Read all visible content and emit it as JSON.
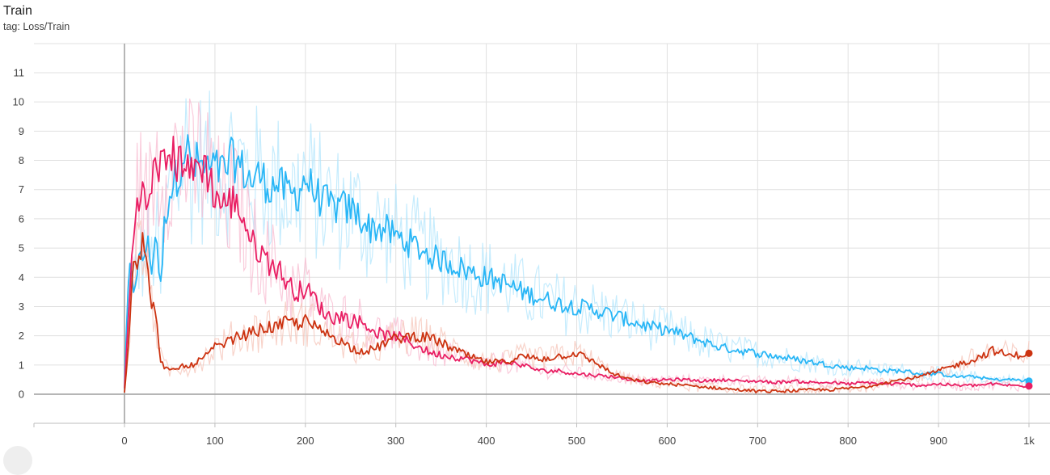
{
  "header": {
    "title": "Train",
    "subtitle": "tag: Loss/Train"
  },
  "chart_data": {
    "type": "line",
    "title": "Train",
    "subtitle": "tag: Loss/Train",
    "xlabel": "",
    "ylabel": "",
    "xlim": [
      -100,
      1015
    ],
    "ylim": [
      -1,
      12
    ],
    "x_ticks": [
      "0",
      "100",
      "200",
      "300",
      "400",
      "500",
      "600",
      "700",
      "800",
      "900",
      "1k"
    ],
    "y_ticks": [
      "0",
      "1",
      "2",
      "3",
      "4",
      "5",
      "6",
      "7",
      "8",
      "9",
      "10",
      "11"
    ],
    "grid": true,
    "legend": "none",
    "smoothing": "light raw trace behind smoothed trace",
    "series": [
      {
        "color": "#29b6f6",
        "raw_color": "#b3e5fc",
        "x": [
          0,
          5,
          10,
          15,
          20,
          25,
          30,
          35,
          40,
          45,
          50,
          55,
          60,
          65,
          70,
          75,
          80,
          90,
          100,
          110,
          120,
          130,
          140,
          150,
          160,
          170,
          180,
          190,
          200,
          210,
          220,
          230,
          240,
          250,
          260,
          270,
          280,
          290,
          300,
          320,
          340,
          360,
          380,
          400,
          420,
          440,
          460,
          480,
          500,
          520,
          540,
          560,
          580,
          600,
          620,
          640,
          660,
          680,
          700,
          720,
          740,
          760,
          780,
          800,
          820,
          840,
          860,
          880,
          900,
          920,
          940,
          960,
          980,
          1000
        ],
        "y": [
          0.2,
          4.3,
          3.6,
          4.5,
          4.6,
          5.2,
          4.4,
          5.6,
          3.6,
          6.2,
          6.9,
          7.3,
          7.6,
          8.4,
          8.3,
          7.6,
          7.9,
          7.7,
          7.7,
          7.6,
          8.1,
          7.7,
          7.3,
          7.5,
          7.1,
          7.2,
          6.9,
          6.8,
          7.4,
          6.9,
          6.6,
          6.4,
          6.4,
          6.3,
          6.1,
          5.7,
          5.7,
          5.6,
          5.4,
          5.1,
          4.7,
          4.5,
          4.2,
          4.0,
          3.8,
          3.5,
          3.3,
          3.1,
          3.0,
          2.9,
          2.7,
          2.5,
          2.3,
          2.2,
          2.0,
          1.8,
          1.6,
          1.5,
          1.4,
          1.3,
          1.2,
          1.1,
          1.0,
          0.9,
          0.9,
          0.8,
          0.8,
          0.7,
          0.7,
          0.6,
          0.6,
          0.5,
          0.5,
          0.45
        ]
      },
      {
        "color": "#e91e63",
        "raw_color": "#f8bbd0",
        "x": [
          0,
          5,
          10,
          15,
          20,
          25,
          30,
          35,
          40,
          45,
          50,
          55,
          60,
          65,
          70,
          75,
          80,
          90,
          100,
          110,
          120,
          130,
          140,
          150,
          160,
          170,
          180,
          190,
          200,
          210,
          220,
          230,
          240,
          250,
          260,
          270,
          280,
          290,
          300,
          320,
          340,
          360,
          380,
          400,
          420,
          440,
          460,
          480,
          500,
          520,
          540,
          560,
          580,
          600,
          620,
          640,
          660,
          680,
          700,
          720,
          740,
          760,
          780,
          800,
          820,
          840,
          860,
          880,
          900,
          920,
          940,
          960,
          980,
          1000
        ],
        "y": [
          0.2,
          3.0,
          5.5,
          7.0,
          6.8,
          6.3,
          7.0,
          8.1,
          7.8,
          7.7,
          8.4,
          8.0,
          7.9,
          8.2,
          8.0,
          7.3,
          7.9,
          7.8,
          6.8,
          6.5,
          6.6,
          6.2,
          5.2,
          4.9,
          4.5,
          4.3,
          3.8,
          3.5,
          3.6,
          3.3,
          2.8,
          2.6,
          2.7,
          2.5,
          2.5,
          2.3,
          2.1,
          2.0,
          2.0,
          1.7,
          1.4,
          1.3,
          1.2,
          1.0,
          1.1,
          1.0,
          0.8,
          0.8,
          0.7,
          0.65,
          0.6,
          0.5,
          0.45,
          0.5,
          0.5,
          0.45,
          0.5,
          0.45,
          0.45,
          0.4,
          0.45,
          0.4,
          0.4,
          0.35,
          0.4,
          0.35,
          0.35,
          0.3,
          0.35,
          0.3,
          0.3,
          0.35,
          0.3,
          0.28
        ]
      },
      {
        "color": "#cc3311",
        "raw_color": "#f5c4b8",
        "x": [
          0,
          5,
          10,
          15,
          20,
          25,
          30,
          35,
          40,
          45,
          50,
          55,
          60,
          65,
          70,
          75,
          80,
          90,
          100,
          110,
          120,
          130,
          140,
          150,
          160,
          170,
          180,
          190,
          200,
          210,
          220,
          230,
          240,
          250,
          260,
          270,
          280,
          290,
          300,
          320,
          340,
          360,
          380,
          400,
          420,
          440,
          460,
          480,
          500,
          520,
          540,
          560,
          580,
          600,
          620,
          640,
          660,
          680,
          700,
          720,
          740,
          760,
          780,
          800,
          820,
          840,
          860,
          880,
          900,
          920,
          940,
          960,
          980,
          1000
        ],
        "y": [
          0.1,
          1.9,
          4.9,
          4.6,
          5.4,
          4.2,
          3.2,
          2.5,
          1.2,
          0.9,
          0.8,
          0.8,
          0.9,
          1.0,
          0.9,
          1.0,
          1.1,
          1.3,
          1.6,
          1.7,
          1.9,
          2.0,
          2.1,
          2.2,
          2.3,
          2.3,
          2.5,
          2.4,
          2.5,
          2.3,
          2.1,
          2.0,
          1.8,
          1.6,
          1.5,
          1.5,
          1.6,
          1.8,
          1.9,
          2.0,
          1.9,
          1.6,
          1.3,
          1.1,
          1.1,
          1.3,
          1.2,
          1.3,
          1.4,
          1.1,
          0.7,
          0.5,
          0.4,
          0.35,
          0.3,
          0.25,
          0.2,
          0.15,
          0.1,
          0.1,
          0.12,
          0.15,
          0.15,
          0.2,
          0.25,
          0.4,
          0.5,
          0.6,
          0.8,
          1.0,
          1.2,
          1.5,
          1.3,
          1.4
        ]
      }
    ]
  }
}
